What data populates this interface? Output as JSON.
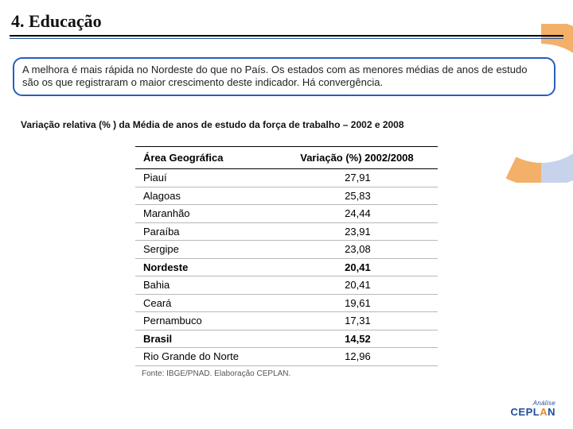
{
  "title": "4. Educação",
  "callout": "A melhora é mais rápida no Nordeste do que no País. Os estados com as menores médias de anos de estudo são os que registraram o maior crescimento deste indicador. Há convergência.",
  "chart_title": "Variação relativa (% ) da Média de anos de estudo da força de trabalho – 2002 e 2008",
  "table": {
    "columns": [
      "Área Geográfica",
      "Variação (%) 2002/2008"
    ],
    "rows": [
      {
        "label": "Piauí",
        "value": "27,91",
        "bold": false
      },
      {
        "label": "Alagoas",
        "value": "25,83",
        "bold": false
      },
      {
        "label": "Maranhão",
        "value": "24,44",
        "bold": false
      },
      {
        "label": "Paraíba",
        "value": "23,91",
        "bold": false
      },
      {
        "label": "Sergipe",
        "value": "23,08",
        "bold": false
      },
      {
        "label": "Nordeste",
        "value": "20,41",
        "bold": true
      },
      {
        "label": "Bahia",
        "value": "20,41",
        "bold": false
      },
      {
        "label": "Ceará",
        "value": "19,61",
        "bold": false
      },
      {
        "label": "Pernambuco",
        "value": "17,31",
        "bold": false
      },
      {
        "label": "Brasil",
        "value": "14,52",
        "bold": true
      },
      {
        "label": "Rio Grande do Norte",
        "value": "12,96",
        "bold": false
      }
    ],
    "source": "Fonte: IBGE/PNAD. Elaboração CEPLAN."
  },
  "logo": {
    "line1": "Análise",
    "line2_a": "CEPL",
    "line2_b": "A",
    "line2_c": "N"
  },
  "colors": {
    "accent_blue": "#1f4e9c",
    "accent_orange": "#e98a2e",
    "border_blue": "#2a5dbb",
    "row_border": "#b8b8b8"
  }
}
